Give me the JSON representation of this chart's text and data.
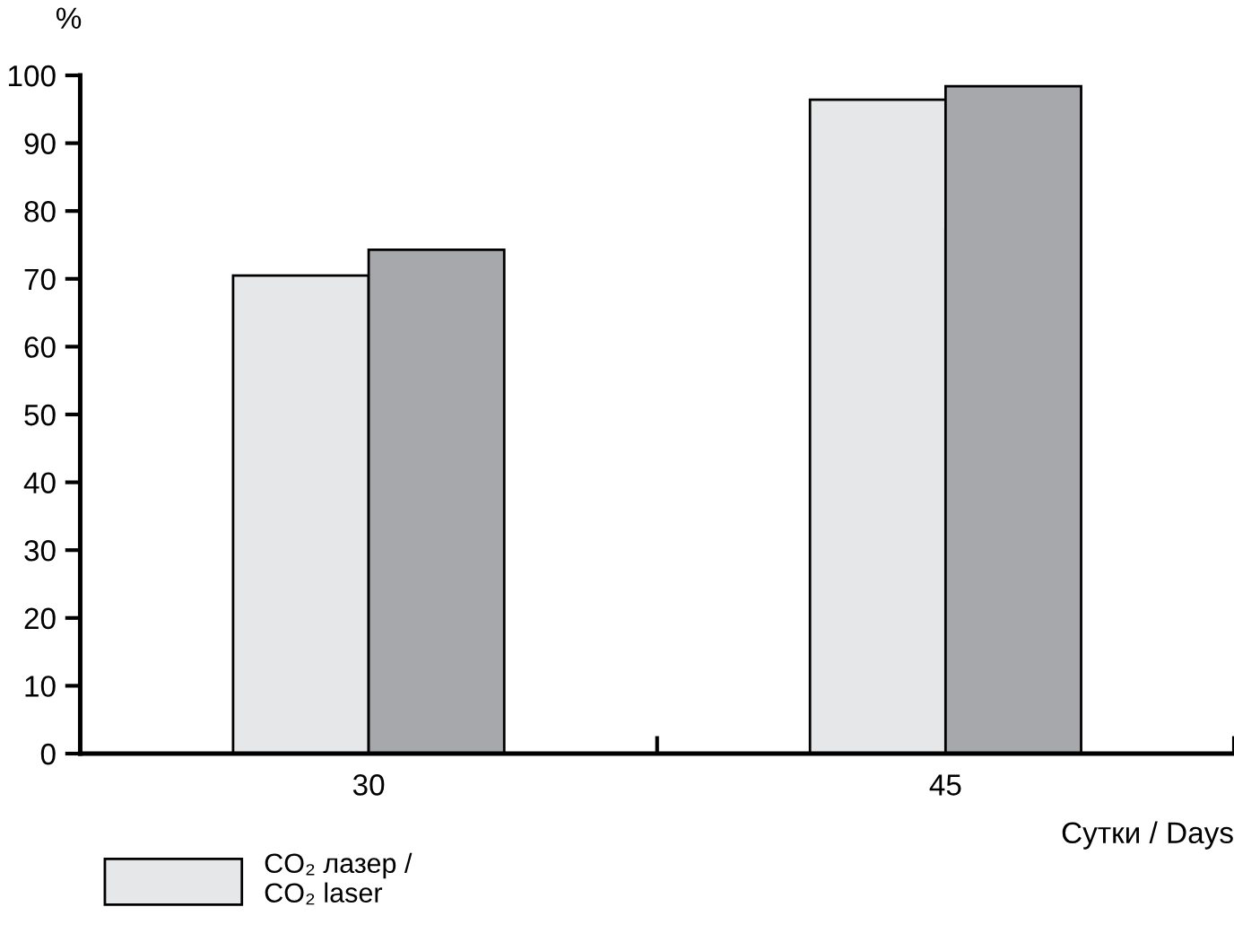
{
  "chart_data": {
    "type": "bar",
    "ylabel": "%",
    "xlabel": "Сутки / Days",
    "categories": [
      "30",
      "45"
    ],
    "series": [
      {
        "name": "CO₂ лазер /\nCO₂ laser",
        "color": "#e6e7e8",
        "values": [
          70.5,
          96.4
        ]
      },
      {
        "color": "#a7a8ab",
        "values": [
          74.3,
          98.4
        ]
      }
    ],
    "ylim": [
      0,
      100
    ],
    "yticks": [
      0,
      10,
      20,
      30,
      40,
      50,
      60,
      70,
      80,
      90,
      100
    ],
    "grid": false,
    "legend": "bottom left"
  }
}
